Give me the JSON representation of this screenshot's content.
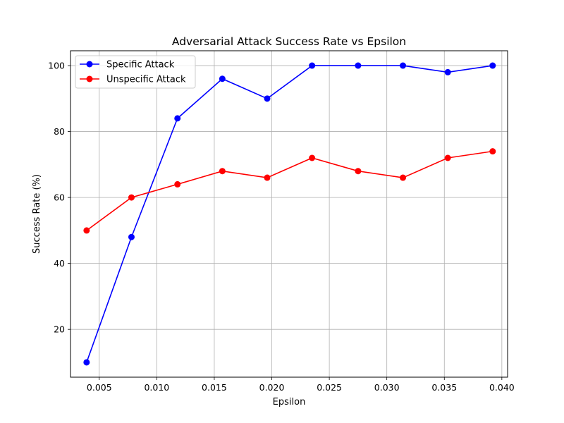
{
  "chart_data": {
    "type": "line",
    "title": "Adversarial Attack Success Rate vs Epsilon",
    "xlabel": "Epsilon",
    "ylabel": "Success Rate (%)",
    "xlim": [
      0.0025,
      0.0405
    ],
    "ylim": [
      5.5,
      104.5
    ],
    "xticks": [
      0.005,
      0.01,
      0.015,
      0.02,
      0.025,
      0.03,
      0.035,
      0.04
    ],
    "xtick_labels": [
      "0.005",
      "0.010",
      "0.015",
      "0.020",
      "0.025",
      "0.030",
      "0.035",
      "0.040"
    ],
    "yticks": [
      20,
      40,
      60,
      80,
      100
    ],
    "ytick_labels": [
      "20",
      "40",
      "60",
      "80",
      "100"
    ],
    "grid": true,
    "legend_position": "top-left",
    "x": [
      0.0039,
      0.0078,
      0.0118,
      0.0157,
      0.0196,
      0.0235,
      0.0275,
      0.0314,
      0.0353,
      0.0392
    ],
    "series": [
      {
        "name": "Specific Attack",
        "color": "#0000ff",
        "marker": "circle",
        "values": [
          10,
          48,
          84,
          96,
          90,
          100,
          100,
          100,
          98,
          100
        ]
      },
      {
        "name": "Unspecific Attack",
        "color": "#ff0000",
        "marker": "circle",
        "values": [
          50,
          60,
          64,
          68,
          66,
          72,
          68,
          66,
          72,
          74
        ]
      }
    ]
  }
}
